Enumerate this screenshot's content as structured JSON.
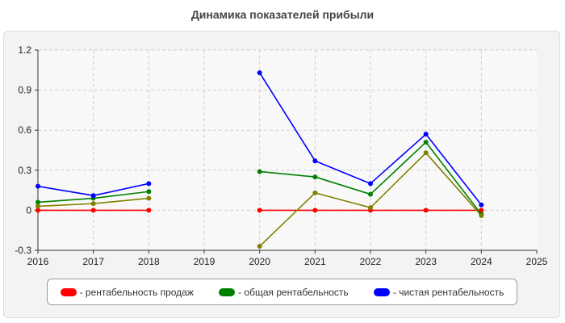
{
  "chart_data": {
    "type": "line",
    "title": "Динамика показателей прибыли",
    "xlabel": "",
    "ylabel": "",
    "x_ticks": [
      "2016",
      "2017",
      "2018",
      "2019",
      "2020",
      "2021",
      "2022",
      "2023",
      "2024",
      "2025"
    ],
    "y_ticks": [
      "-0.3",
      "0",
      "0.3",
      "0.6",
      "0.9",
      "1.2"
    ],
    "xlim": [
      2016,
      2025
    ],
    "ylim": [
      -0.3,
      1.2
    ],
    "grid": true,
    "legend_position": "bottom",
    "series": [
      {
        "name": "- рентабельность продаж",
        "color": "#ff0000",
        "points": [
          [
            2016,
            0
          ],
          [
            2017,
            0
          ],
          [
            2018,
            0
          ],
          [
            2020,
            0
          ],
          [
            2021,
            0
          ],
          [
            2022,
            0
          ],
          [
            2023,
            0
          ],
          [
            2024,
            0
          ]
        ],
        "segments": [
          [
            0,
            2
          ],
          [
            3,
            7
          ]
        ]
      },
      {
        "name": "- общая рентабельность",
        "color": "#008000",
        "points": [
          [
            2016,
            0.06
          ],
          [
            2017,
            0.09
          ],
          [
            2018,
            0.14
          ],
          [
            2020,
            0.29
          ],
          [
            2021,
            0.25
          ],
          [
            2022,
            0.12
          ],
          [
            2023,
            0.51
          ],
          [
            2024,
            -0.03
          ]
        ],
        "segments": [
          [
            0,
            2
          ],
          [
            3,
            7
          ]
        ]
      },
      {
        "name": "- чистая рентабельность",
        "color": "#0000ff",
        "points": [
          [
            2016,
            0.18
          ],
          [
            2017,
            0.11
          ],
          [
            2018,
            0.2
          ],
          [
            2020,
            1.03
          ],
          [
            2021,
            0.37
          ],
          [
            2022,
            0.2
          ],
          [
            2023,
            0.57
          ],
          [
            2024,
            0.04
          ]
        ],
        "segments": [
          [
            0,
            2
          ],
          [
            3,
            7
          ]
        ]
      },
      {
        "color": "#808000",
        "points": [
          [
            2016,
            0.03
          ],
          [
            2017,
            0.05
          ],
          [
            2018,
            0.09
          ],
          [
            2020,
            -0.27
          ],
          [
            2021,
            0.13
          ],
          [
            2022,
            0.02
          ],
          [
            2023,
            0.43
          ],
          [
            2024,
            -0.04
          ]
        ],
        "segments": [
          [
            0,
            2
          ],
          [
            3,
            7
          ]
        ]
      }
    ]
  }
}
